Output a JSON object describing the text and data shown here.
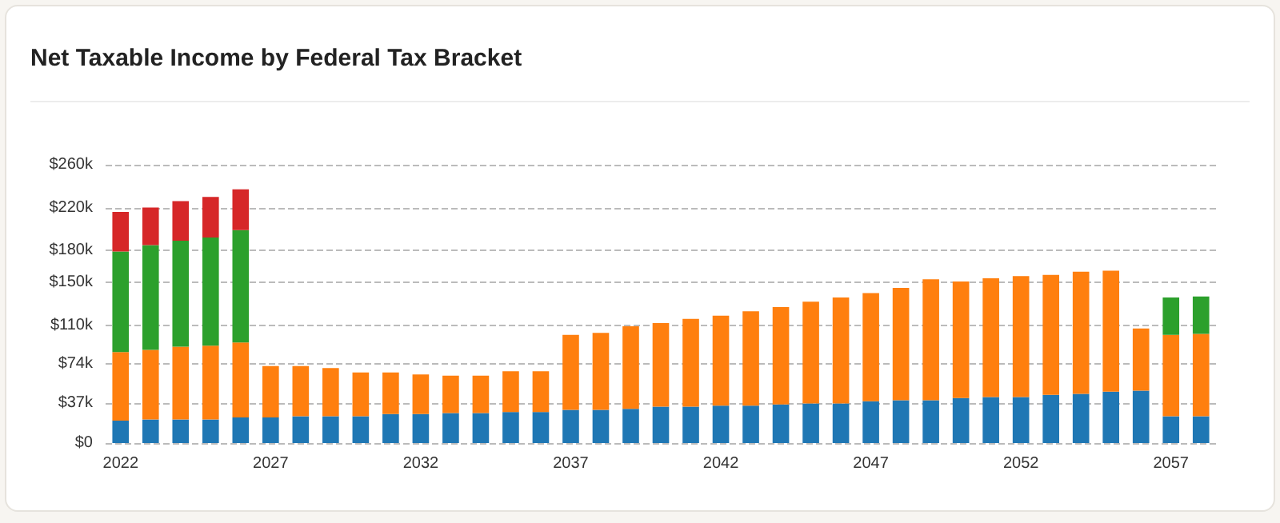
{
  "chart_data": {
    "type": "bar",
    "title": "Net Taxable Income by Federal Tax Bracket",
    "stacked": true,
    "categories": [
      "2022",
      null,
      null,
      null,
      null,
      "2027",
      null,
      null,
      null,
      null,
      "2032",
      null,
      null,
      null,
      null,
      "2037",
      null,
      null,
      null,
      null,
      "2042",
      null,
      null,
      null,
      null,
      "2047",
      null,
      null,
      null,
      null,
      "2052",
      null,
      null,
      null,
      null,
      "2057",
      null
    ],
    "series": [
      {
        "color": "#1f77b4",
        "values": [
          21000,
          22000,
          22000,
          22000,
          24000,
          24000,
          25000,
          25000,
          25000,
          27000,
          27000,
          28000,
          28000,
          29000,
          29000,
          31000,
          31000,
          32000,
          34000,
          34000,
          35000,
          35000,
          36000,
          37000,
          37000,
          39000,
          40000,
          40000,
          42000,
          43000,
          43000,
          45000,
          46000,
          48000,
          49000,
          25000,
          25000
        ]
      },
      {
        "color": "#ff7f0e",
        "values": [
          64000,
          65000,
          68000,
          69000,
          70000,
          48000,
          47000,
          45000,
          41000,
          39000,
          37000,
          35000,
          35000,
          38000,
          38000,
          70000,
          72000,
          77000,
          78000,
          82000,
          84000,
          88000,
          91000,
          95000,
          99000,
          101000,
          105000,
          113000,
          109000,
          111000,
          113000,
          112000,
          114000,
          113000,
          58000,
          76000,
          77000
        ]
      },
      {
        "color": "#2ca02c",
        "values": [
          94000,
          98000,
          99000,
          101000,
          105000,
          null,
          null,
          null,
          null,
          null,
          null,
          null,
          null,
          null,
          null,
          null,
          null,
          null,
          null,
          null,
          null,
          null,
          null,
          null,
          null,
          null,
          null,
          null,
          null,
          null,
          null,
          null,
          null,
          null,
          null,
          35000,
          35000
        ]
      },
      {
        "color": "#d62728",
        "values": [
          37000,
          35000,
          37000,
          38000,
          38000,
          null,
          null,
          null,
          null,
          null,
          null,
          null,
          null,
          null,
          null,
          null,
          null,
          null,
          null,
          null,
          null,
          null,
          null,
          null,
          null,
          null,
          null,
          null,
          null,
          null,
          null,
          null,
          null,
          null,
          null,
          null,
          null
        ]
      }
    ],
    "ylim": [
      0,
      260000
    ],
    "yticks": [
      {
        "value": 0,
        "label": "$0"
      },
      {
        "value": 37000,
        "label": "$37k"
      },
      {
        "value": 74000,
        "label": "$74k"
      },
      {
        "value": 110000,
        "label": "$110k"
      },
      {
        "value": 150000,
        "label": "$150k"
      },
      {
        "value": 180000,
        "label": "$180k"
      },
      {
        "value": 220000,
        "label": "$220k"
      },
      {
        "value": 260000,
        "label": "$260k"
      }
    ],
    "grid": "y"
  }
}
